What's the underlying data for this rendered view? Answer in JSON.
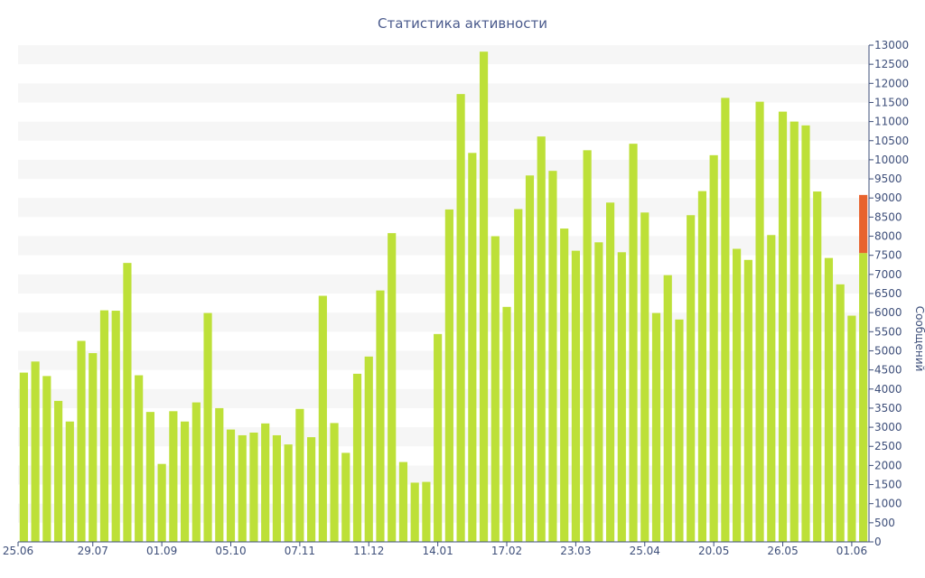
{
  "chart_data": {
    "type": "bar",
    "title": "Статистика активности",
    "xlabel": "",
    "ylabel": "Сообщений",
    "ylim": [
      0,
      13000
    ],
    "ytick_step": 500,
    "grid": "alternating-bands",
    "colors": {
      "bar": "#bde038",
      "current_bar_top": "#e8632e",
      "band": "#f6f6f6",
      "axis": "#3e4f7a",
      "title": "#4a5a8c"
    },
    "x_tick_labels": [
      {
        "index": 0,
        "label": "25.06"
      },
      {
        "index": 6,
        "label": "29.07"
      },
      {
        "index": 12,
        "label": "01.09"
      },
      {
        "index": 18,
        "label": "05.10"
      },
      {
        "index": 24,
        "label": "07.11"
      },
      {
        "index": 30,
        "label": "11.12"
      },
      {
        "index": 36,
        "label": "14.01"
      },
      {
        "index": 42,
        "label": "17.02"
      },
      {
        "index": 48,
        "label": "23.03"
      },
      {
        "index": 54,
        "label": "25.04"
      },
      {
        "index": 60,
        "label": "20.05"
      },
      {
        "index": 66,
        "label": "26.05"
      },
      {
        "index": 72,
        "label": "01.06"
      }
    ],
    "values": [
      4430,
      4720,
      4340,
      3690,
      3150,
      5260,
      4940,
      6060,
      6050,
      7300,
      4360,
      3400,
      2040,
      3420,
      3150,
      3650,
      5990,
      3500,
      2940,
      2790,
      2860,
      3100,
      2790,
      2550,
      3480,
      2740,
      6440,
      3110,
      2330,
      4400,
      4850,
      6580,
      8080,
      2090,
      1550,
      1570,
      5440,
      8700,
      11720,
      10180,
      12830,
      8000,
      6150,
      8710,
      9590,
      10610,
      9710,
      8200,
      7620,
      10250,
      7840,
      8880,
      7580,
      10420,
      8620,
      5990,
      6980,
      5820,
      8550,
      9180,
      10120,
      11620,
      7670,
      7380,
      11520,
      8030,
      11260,
      11000,
      10900,
      9170,
      7430,
      6740,
      5920,
      7560
    ],
    "current_bar_extra": 1520
  }
}
